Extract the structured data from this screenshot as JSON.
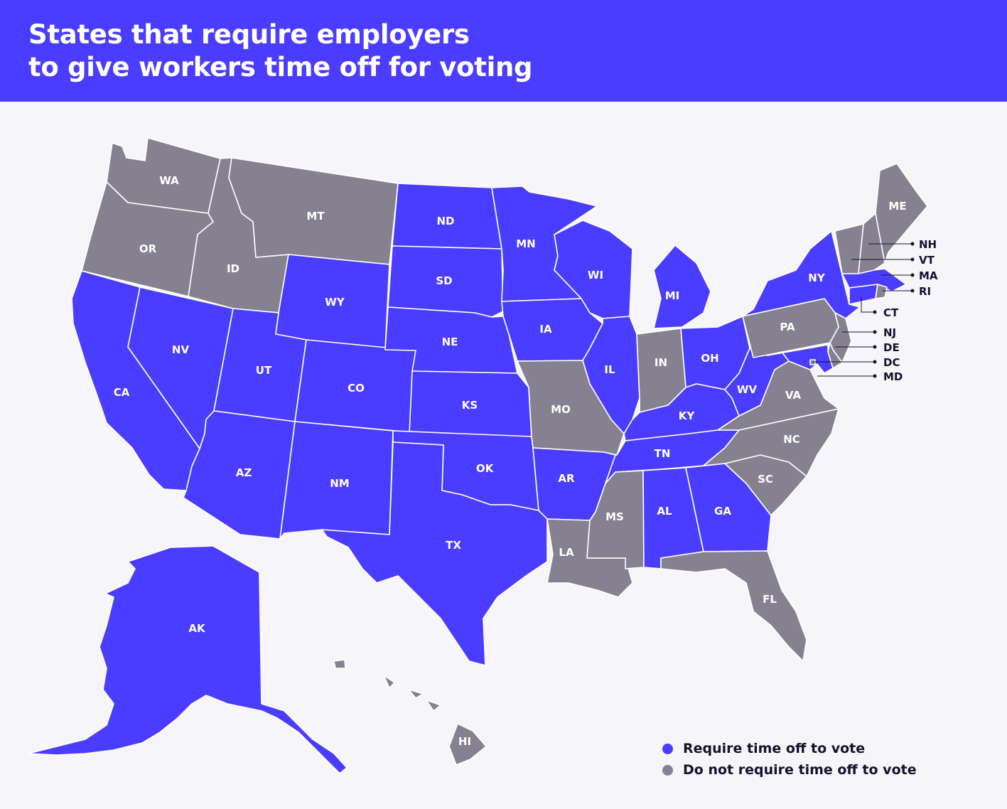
{
  "title": {
    "line1": "States that require employers",
    "line2": "to give workers time off for voting"
  },
  "colors": {
    "header": "#4a3dff",
    "background": "#f6f5fa",
    "require": "#4a3dff",
    "not_require": "#858191",
    "text_dark": "#15122b"
  },
  "legend": {
    "require": "Require time off to vote",
    "not_require": "Do not require time off to vote"
  },
  "states": {
    "WA": {
      "label": "WA",
      "requires": false
    },
    "OR": {
      "label": "OR",
      "requires": false
    },
    "ID": {
      "label": "ID",
      "requires": false
    },
    "MT": {
      "label": "MT",
      "requires": false
    },
    "WY": {
      "label": "WY",
      "requires": true
    },
    "ND": {
      "label": "ND",
      "requires": true
    },
    "SD": {
      "label": "SD",
      "requires": true
    },
    "NE": {
      "label": "NE",
      "requires": true
    },
    "KS": {
      "label": "KS",
      "requires": true
    },
    "OK": {
      "label": "OK",
      "requires": true
    },
    "TX": {
      "label": "TX",
      "requires": true
    },
    "CA": {
      "label": "CA",
      "requires": true
    },
    "NV": {
      "label": "NV",
      "requires": true
    },
    "UT": {
      "label": "UT",
      "requires": true
    },
    "AZ": {
      "label": "AZ",
      "requires": true
    },
    "CO": {
      "label": "CO",
      "requires": true
    },
    "NM": {
      "label": "NM",
      "requires": true
    },
    "MN": {
      "label": "MN",
      "requires": true
    },
    "IA": {
      "label": "IA",
      "requires": true
    },
    "MO": {
      "label": "MO",
      "requires": false
    },
    "AR": {
      "label": "AR",
      "requires": true
    },
    "LA": {
      "label": "LA",
      "requires": false
    },
    "WI": {
      "label": "WI",
      "requires": true
    },
    "IL": {
      "label": "IL",
      "requires": true
    },
    "MI": {
      "label": "MI",
      "requires": true
    },
    "IN": {
      "label": "IN",
      "requires": false
    },
    "OH": {
      "label": "OH",
      "requires": true
    },
    "KY": {
      "label": "KY",
      "requires": true
    },
    "TN": {
      "label": "TN",
      "requires": true
    },
    "MS": {
      "label": "MS",
      "requires": false
    },
    "AL": {
      "label": "AL",
      "requires": true
    },
    "GA": {
      "label": "GA",
      "requires": true
    },
    "FL": {
      "label": "FL",
      "requires": false
    },
    "SC": {
      "label": "SC",
      "requires": false
    },
    "NC": {
      "label": "NC",
      "requires": false
    },
    "VA": {
      "label": "VA",
      "requires": false
    },
    "WV": {
      "label": "WV",
      "requires": true
    },
    "PA": {
      "label": "PA",
      "requires": false
    },
    "NY": {
      "label": "NY",
      "requires": true
    },
    "ME": {
      "label": "ME",
      "requires": false
    },
    "NH": {
      "label": "NH",
      "requires": false
    },
    "VT": {
      "label": "VT",
      "requires": false
    },
    "MA": {
      "label": "MA",
      "requires": true
    },
    "RI": {
      "label": "RI",
      "requires": false
    },
    "CT": {
      "label": "CT",
      "requires": true
    },
    "NJ": {
      "label": "NJ",
      "requires": false
    },
    "DE": {
      "label": "DE",
      "requires": false
    },
    "DC": {
      "label": "DC",
      "requires": false
    },
    "MD": {
      "label": "MD",
      "requires": true
    },
    "AK": {
      "label": "AK",
      "requires": true
    },
    "HI": {
      "label": "HI",
      "requires": false
    }
  }
}
